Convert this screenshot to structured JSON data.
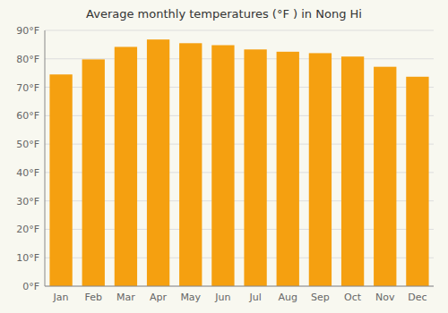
{
  "chart_data": {
    "type": "bar",
    "title": "Average monthly temperatures (°F ) in Nong Hi",
    "categories": [
      "Jan",
      "Feb",
      "Mar",
      "Apr",
      "May",
      "Jun",
      "Jul",
      "Aug",
      "Sep",
      "Oct",
      "Nov",
      "Dec"
    ],
    "values": [
      74.5,
      79.8,
      84.2,
      86.8,
      85.5,
      84.8,
      83.3,
      82.5,
      82.0,
      80.8,
      77.2,
      73.7
    ],
    "color": "#F5A010",
    "ylim": [
      0,
      90
    ],
    "yticks": [
      {
        "value": 0,
        "label": "0°F"
      },
      {
        "value": 10,
        "label": "10°F"
      },
      {
        "value": 20,
        "label": "20°F"
      },
      {
        "value": 30,
        "label": "30°F"
      },
      {
        "value": 40,
        "label": "40°F"
      },
      {
        "value": 50,
        "label": "50°F"
      },
      {
        "value": 60,
        "label": "60°F"
      },
      {
        "value": 70,
        "label": "70°F"
      },
      {
        "value": 80,
        "label": "80°F"
      },
      {
        "value": 90,
        "label": "90°F"
      }
    ],
    "grid": true
  }
}
